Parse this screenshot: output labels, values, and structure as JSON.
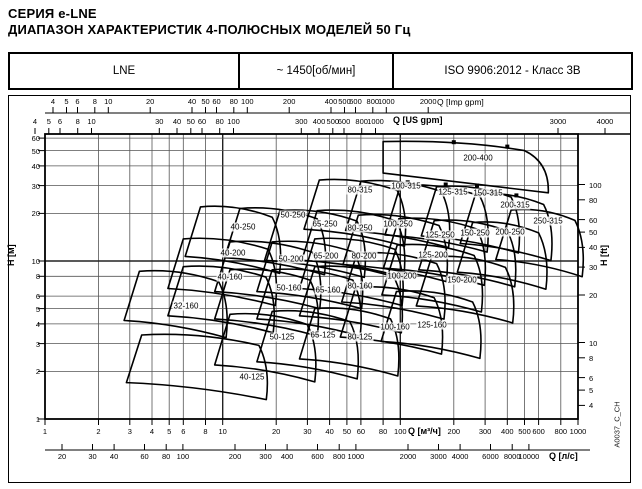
{
  "page": {
    "title_line1": "СЕРИЯ e-LNE",
    "title_line2": "ДИАПАЗОН ХАРАКТЕРИСТИК 4-ПОЛЮСНЫХ МОДЕЛЕЙ 50 Гц",
    "doc_code": "A0037_C_CH"
  },
  "header": {
    "series": "LNE",
    "speed": "~ 1450[об/мин]",
    "standard": "ISO 9906:2012 - Класс 3B"
  },
  "axes": {
    "imp_gpm": {
      "unit": "Q [Imp gpm]",
      "ticks": [
        4,
        5,
        6,
        8,
        10,
        20,
        40,
        50,
        60,
        80,
        100,
        200,
        400,
        500,
        600,
        800,
        1000,
        2000
      ]
    },
    "us_gpm": {
      "unit": "Q [US gpm]",
      "ticks": [
        4,
        5,
        6,
        8,
        10,
        30,
        40,
        50,
        60,
        80,
        100,
        300,
        400,
        500,
        600,
        800,
        1000
      ],
      "tail_ticks": [
        3000,
        4000
      ]
    },
    "m3h": {
      "unit": "Q [м³/ч]",
      "ticks_left": [
        1,
        2,
        3,
        4,
        5,
        6,
        8,
        10,
        20,
        30,
        40,
        50,
        60,
        80,
        100
      ],
      "ticks_right": [
        200,
        300,
        400,
        500,
        600,
        800,
        1000
      ]
    },
    "l_s": {
      "unit": "Q [л/с]",
      "ticks": [
        20,
        30,
        40,
        60,
        80,
        100,
        200,
        300,
        400,
        600,
        800,
        1000,
        2000,
        3000,
        4000,
        6000,
        8000,
        10000
      ]
    },
    "h_m": {
      "unit": "H [м]",
      "ticks": [
        60,
        50,
        40,
        30,
        20,
        10,
        8,
        6,
        5,
        4,
        3,
        2,
        1
      ]
    },
    "h_ft": {
      "unit": "H [ft]",
      "ticks": [
        100,
        80,
        60,
        50,
        40,
        30,
        20,
        10,
        8,
        6,
        5,
        4
      ]
    }
  },
  "chart_data": {
    "type": "area",
    "title": "Pump performance range chart, 4-pole models, 50 Hz, ~1450 rpm",
    "x_axis": {
      "label": "Q [м³/ч]",
      "scale": "log",
      "range": [
        1,
        1000
      ]
    },
    "y_axis": {
      "label": "H [м]",
      "scale": "log",
      "range": [
        1,
        60
      ]
    },
    "grid": true,
    "models": [
      {
        "name": "32-160",
        "q_m3h": [
          3.4,
          9.5
        ],
        "h_m": [
          4.2,
          8.6
        ]
      },
      {
        "name": "40-125",
        "q_m3h": [
          3.5,
          16
        ],
        "h_m": [
          1.7,
          3.4
        ]
      },
      {
        "name": "50-125",
        "q_m3h": [
          11,
          30
        ],
        "h_m": [
          2.2,
          4.6
        ]
      },
      {
        "name": "65-125",
        "q_m3h": [
          19,
          52
        ],
        "h_m": [
          2.3,
          4.8
        ]
      },
      {
        "name": "80-125",
        "q_m3h": [
          33,
          88
        ],
        "h_m": [
          2.4,
          5.0
        ]
      },
      {
        "name": "40-160",
        "q_m3h": [
          6,
          17.5
        ],
        "h_m": [
          4.5,
          9.2
        ]
      },
      {
        "name": "50-160",
        "q_m3h": [
          11,
          31
        ],
        "h_m": [
          4.3,
          8.8
        ]
      },
      {
        "name": "65-160",
        "q_m3h": [
          19,
          54
        ],
        "h_m": [
          4.3,
          8.8
        ]
      },
      {
        "name": "80-160",
        "q_m3h": [
          33,
          92
        ],
        "h_m": [
          4.5,
          9.2
        ]
      },
      {
        "name": "100-160",
        "q_m3h": [
          56,
          155
        ],
        "h_m": [
          3.3,
          6.8
        ]
      },
      {
        "name": "125-160",
        "q_m3h": [
          95,
          255
        ],
        "h_m": [
          3.1,
          6.4
        ]
      },
      {
        "name": "40-200",
        "q_m3h": [
          6,
          18
        ],
        "h_m": [
          6.7,
          13.8
        ]
      },
      {
        "name": "50-200",
        "q_m3h": [
          11,
          32
        ],
        "h_m": [
          6.4,
          13.2
        ]
      },
      {
        "name": "65-200",
        "q_m3h": [
          19,
          55
        ],
        "h_m": [
          6.4,
          13.2
        ]
      },
      {
        "name": "80-200",
        "q_m3h": [
          33,
          93
        ],
        "h_m": [
          6.7,
          13.8
        ]
      },
      {
        "name": "100-200",
        "q_m3h": [
          57,
          160
        ],
        "h_m": [
          5.5,
          11.2
        ]
      },
      {
        "name": "125-200",
        "q_m3h": [
          96,
          260
        ],
        "h_m": [
          6.1,
          12.6
        ]
      },
      {
        "name": "150-200",
        "q_m3h": [
          150,
          390
        ],
        "h_m": [
          5.2,
          10.6
        ]
      },
      {
        "name": "40-250",
        "q_m3h": [
          7.5,
          19
        ],
        "h_m": [
          10.7,
          22
        ]
      },
      {
        "name": "50-250",
        "q_m3h": [
          12.5,
          34
        ],
        "h_m": [
          10.5,
          21.5
        ]
      },
      {
        "name": "65-250",
        "q_m3h": [
          21,
          57
        ],
        "h_m": [
          10.1,
          20.8
        ]
      },
      {
        "name": "80-250",
        "q_m3h": [
          34,
          95
        ],
        "h_m": [
          10.1,
          20.8
        ]
      },
      {
        "name": "100-250",
        "q_m3h": [
          58,
          165
        ],
        "h_m": [
          9.5,
          19.5
        ]
      },
      {
        "name": "125-250",
        "q_m3h": [
          98,
          270
        ],
        "h_m": [
          9.0,
          18.5
        ]
      },
      {
        "name": "150-250",
        "q_m3h": [
          155,
          400
        ],
        "h_m": [
          8.8,
          18
        ]
      },
      {
        "name": "200-250",
        "q_m3h": [
          255,
          600
        ],
        "h_m": [
          8.5,
          17.5
        ]
      },
      {
        "name": "80-315",
        "q_m3h": [
          35,
          96
        ],
        "h_m": [
          15.9,
          32.5
        ]
      },
      {
        "name": "100-315",
        "q_m3h": [
          60,
          170
        ],
        "h_m": [
          15.6,
          32
        ]
      },
      {
        "name": "125-315",
        "q_m3h": [
          100,
          280
        ],
        "h_m": [
          14.6,
          30
        ]
      },
      {
        "name": "150-315",
        "q_m3h": [
          160,
          420
        ],
        "h_m": [
          14.4,
          29.5
        ]
      },
      {
        "name": "200-315",
        "q_m3h": [
          265,
          640
        ],
        "h_m": [
          12.9,
          26.5
        ]
      },
      {
        "name": "250-315",
        "q_m3h": [
          420,
          960
        ],
        "h_m": [
          10.2,
          21
        ]
      },
      {
        "name": "200-400",
        "q_m3h": [
          80,
          630
        ],
        "h_m": [
          27,
          57
        ]
      }
    ]
  }
}
